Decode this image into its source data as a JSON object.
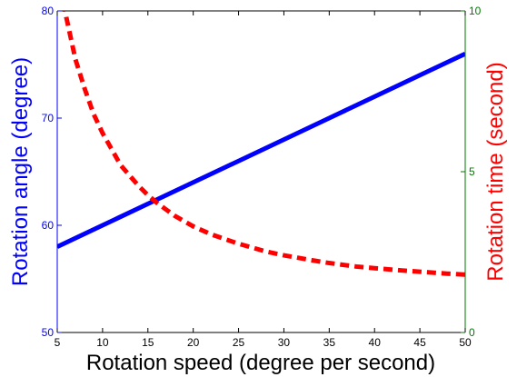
{
  "chart_data": {
    "type": "line",
    "title": "",
    "xlabel": "Rotation speed (degree per second)",
    "ylabel_left": "Rotation angle (degree)",
    "ylabel_right": "Rotation time (second)",
    "xlim": [
      5,
      50
    ],
    "ylim_left": [
      50,
      80
    ],
    "ylim_right": [
      0,
      10
    ],
    "x_ticks": [
      5,
      10,
      15,
      20,
      25,
      30,
      35,
      40,
      45,
      50
    ],
    "y_left_ticks": [
      50,
      60,
      70,
      80
    ],
    "y_right_ticks": [
      0,
      5,
      10
    ],
    "grid": false,
    "series": [
      {
        "axis": "left",
        "color": "#0000ff",
        "style": "solid",
        "x": [
          5,
          10,
          15,
          20,
          25,
          30,
          35,
          40,
          45,
          50
        ],
        "y": [
          58.0,
          60.0,
          62.0,
          64.0,
          66.0,
          68.0,
          70.0,
          72.0,
          74.0,
          76.0
        ]
      },
      {
        "axis": "right",
        "color": "#ff0000",
        "style": "dashed",
        "x": [
          5,
          6,
          7,
          8,
          9,
          10,
          12,
          14,
          15,
          16,
          18,
          20,
          22,
          25,
          28,
          30,
          33,
          35,
          38,
          40,
          43,
          45,
          48,
          50
        ],
        "y": [
          11.6,
          9.8,
          8.5,
          7.6,
          6.8,
          6.2,
          5.2,
          4.55,
          4.27,
          4.03,
          3.62,
          3.3,
          3.05,
          2.76,
          2.52,
          2.4,
          2.25,
          2.16,
          2.05,
          2.0,
          1.93,
          1.89,
          1.83,
          1.8
        ]
      }
    ]
  },
  "colors": {
    "left_axis": "#0000ff",
    "right_axis": "#007a00",
    "x_axis": "#000000"
  }
}
